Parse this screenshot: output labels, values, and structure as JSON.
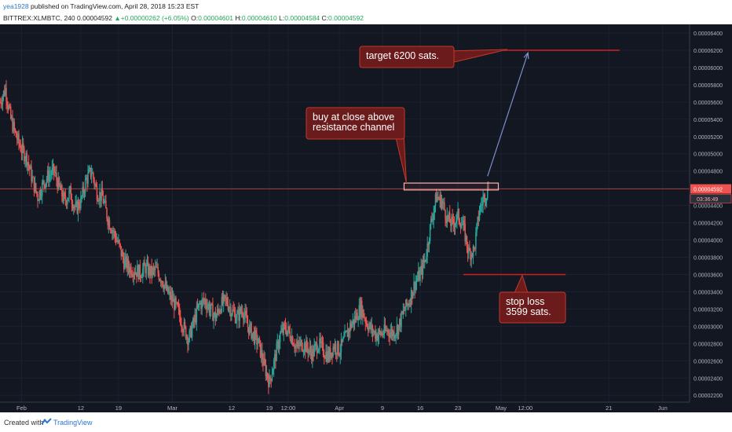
{
  "header": {
    "author": "yea1928",
    "published": " published on TradingView.com, April 28, 2018 15:23 EST",
    "symbol": "BITTREX:XLMBTC, 240",
    "last": "0.00004592",
    "change_arrow": "▲",
    "change": "+0.00000262 (+6.05%)",
    "o_label": "O:",
    "o_value": "0.00004601",
    "h_label": "H:",
    "h_value": "0.00004610",
    "l_label": "L:",
    "l_value": "0.00004584",
    "c_label": "C:",
    "c_value": "0.00004592"
  },
  "footer": {
    "created_with": "Created with",
    "brand": "TradingView"
  },
  "colors": {
    "background": "#131722",
    "up": "#26a69a",
    "down": "#ef5350",
    "annotation_fill": "#6b1b1b",
    "annotation_border": "#c0392b",
    "arrow": "#7b8fc9",
    "price_tag": "#ef5350"
  },
  "chart_data": {
    "type": "candlestick",
    "symbol": "XLMBTC",
    "exchange": "BITTREX",
    "interval": "240",
    "y_range": [
      2.12e-05,
      6.5e-05
    ],
    "y_ticks": [
      "0.00006400",
      "0.00006200",
      "0.00006000",
      "0.00005800",
      "0.00005600",
      "0.00005400",
      "0.00005200",
      "0.00005000",
      "0.00004800",
      "0.00004600",
      "0.00004400",
      "0.00004200",
      "0.00004000",
      "0.00003800",
      "0.00003600",
      "0.00003400",
      "0.00003200",
      "0.00003000",
      "0.00002800",
      "0.00002600",
      "0.00002400",
      "0.00002200"
    ],
    "x_ticks": [
      {
        "label": "Feb",
        "day": 0
      },
      {
        "label": "12",
        "day": 11
      },
      {
        "label": "19",
        "day": 18
      },
      {
        "label": "Mar",
        "day": 28
      },
      {
        "label": "12",
        "day": 39
      },
      {
        "label": "19",
        "day": 46
      },
      {
        "label": "12:00",
        "day": 49.5
      },
      {
        "label": "Apr",
        "day": 59
      },
      {
        "label": "9",
        "day": 67
      },
      {
        "label": "16",
        "day": 74
      },
      {
        "label": "23",
        "day": 81
      },
      {
        "label": "May",
        "day": 89
      },
      {
        "label": "12:00",
        "day": 93.5
      },
      {
        "label": "21",
        "day": 109
      },
      {
        "label": "Jun",
        "day": 119
      }
    ],
    "x_day_range": [
      -4,
      124
    ],
    "price_path": [
      [
        -4,
        5.6e-05
      ],
      [
        -3,
        5.75e-05
      ],
      [
        -2,
        5.4e-05
      ],
      [
        -1,
        5.2e-05
      ],
      [
        0,
        5.05e-05
      ],
      [
        1,
        4.95e-05
      ],
      [
        2,
        4.7e-05
      ],
      [
        3,
        4.5e-05
      ],
      [
        4,
        4.65e-05
      ],
      [
        5,
        4.75e-05
      ],
      [
        6,
        4.8e-05
      ],
      [
        7,
        4.6e-05
      ],
      [
        8,
        4.45e-05
      ],
      [
        9,
        4.55e-05
      ],
      [
        10,
        4.35e-05
      ],
      [
        11,
        4.45e-05
      ],
      [
        12,
        4.7e-05
      ],
      [
        13,
        4.8e-05
      ],
      [
        14,
        4.55e-05
      ],
      [
        15,
        4.5e-05
      ],
      [
        16,
        4.25e-05
      ],
      [
        17,
        4.1e-05
      ],
      [
        18,
        3.95e-05
      ],
      [
        19,
        3.75e-05
      ],
      [
        20,
        3.68e-05
      ],
      [
        21,
        3.65e-05
      ],
      [
        22,
        3.62e-05
      ],
      [
        23,
        3.68e-05
      ],
      [
        24,
        3.62e-05
      ],
      [
        25,
        3.65e-05
      ],
      [
        26,
        3.55e-05
      ],
      [
        27,
        3.4e-05
      ],
      [
        28,
        3.3e-05
      ],
      [
        29,
        3.18e-05
      ],
      [
        30,
        3e-05
      ],
      [
        31,
        2.85e-05
      ],
      [
        32,
        3.05e-05
      ],
      [
        33,
        3.25e-05
      ],
      [
        34,
        3.3e-05
      ],
      [
        35,
        3.2e-05
      ],
      [
        36,
        3.1e-05
      ],
      [
        37,
        3.25e-05
      ],
      [
        38,
        3.3e-05
      ],
      [
        39,
        3.18e-05
      ],
      [
        40,
        3.1e-05
      ],
      [
        41,
        3.2e-05
      ],
      [
        42,
        3e-05
      ],
      [
        43,
        2.9e-05
      ],
      [
        44,
        2.8e-05
      ],
      [
        45,
        2.55e-05
      ],
      [
        46,
        2.35e-05
      ],
      [
        47,
        2.62e-05
      ],
      [
        48,
        2.9e-05
      ],
      [
        49,
        2.98e-05
      ],
      [
        50,
        2.9e-05
      ],
      [
        51,
        2.75e-05
      ],
      [
        52,
        2.8e-05
      ],
      [
        53,
        2.75e-05
      ],
      [
        54,
        2.68e-05
      ],
      [
        55,
        2.8e-05
      ],
      [
        56,
        2.72e-05
      ],
      [
        57,
        2.65e-05
      ],
      [
        58,
        2.78e-05
      ],
      [
        59,
        2.72e-05
      ],
      [
        60,
        2.85e-05
      ],
      [
        61,
        3e-05
      ],
      [
        62,
        3.1e-05
      ],
      [
        63,
        3.22e-05
      ],
      [
        64,
        3.05e-05
      ],
      [
        65,
        2.95e-05
      ],
      [
        66,
        2.9e-05
      ],
      [
        67,
        2.92e-05
      ],
      [
        68,
        2.95e-05
      ],
      [
        69,
        2.92e-05
      ],
      [
        70,
        3e-05
      ],
      [
        71,
        3.18e-05
      ],
      [
        72,
        3.3e-05
      ],
      [
        73,
        3.5e-05
      ],
      [
        74,
        3.6e-05
      ],
      [
        75,
        3.8e-05
      ],
      [
        76,
        4.2e-05
      ],
      [
        77,
        4.5e-05
      ],
      [
        78,
        4.45e-05
      ],
      [
        79,
        4.25e-05
      ],
      [
        80,
        4.18e-05
      ],
      [
        81,
        4.28e-05
      ],
      [
        82,
        4.15e-05
      ],
      [
        83,
        3.85e-05
      ],
      [
        84,
        3.88e-05
      ],
      [
        85,
        4.35e-05
      ],
      [
        86,
        4.52e-05
      ],
      [
        86.7,
        4.59e-05
      ]
    ],
    "last_price": "0.00004592",
    "countdown": "03:36:49",
    "resistance_zone": {
      "day_start": 71,
      "day_end": 88.5,
      "low": 4.58e-05,
      "high": 4.66e-05
    },
    "target_line": {
      "day_start": 89,
      "day_end": 111,
      "price": 6.2e-05
    },
    "stop_line": {
      "day_start": 82,
      "day_end": 101,
      "price": 3.6e-05
    },
    "arrow": {
      "from_day": 86.5,
      "from_price": 4.74e-05,
      "to_day": 94,
      "to_price": 6.17e-05
    },
    "annotations": [
      {
        "id": "target",
        "lines": [
          "target 6200 sats."
        ]
      },
      {
        "id": "buy",
        "lines": [
          "buy at close above",
          "resistance channel"
        ]
      },
      {
        "id": "stop",
        "lines": [
          "stop loss",
          "3599 sats."
        ]
      }
    ]
  }
}
